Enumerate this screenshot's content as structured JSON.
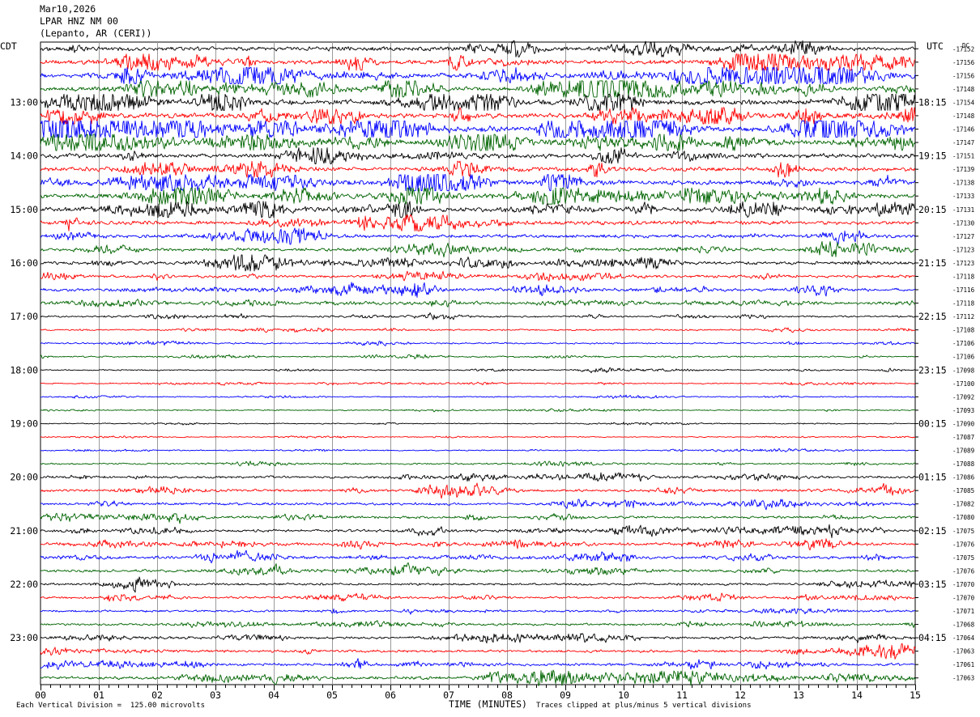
{
  "header": {
    "date": "Mar10,2026",
    "station": "LPAR HNZ NM 00",
    "location": "(Lepanto, AR (CERI))"
  },
  "footer": {
    "left_note": "Each Vertical Division =  125.00 microvolts",
    "xaxis_title": "TIME (MINUTES)",
    "right_note": "Traces clipped at plus/minus 5 vertical divisions"
  },
  "chart_data": {
    "type": "line",
    "title": "Mar10,2026 LPAR HNZ NM 00 (Lepanto, AR (CERI))",
    "xlabel": "TIME (MINUTES)",
    "left_axis_label": "CDT",
    "right_axis_label": "UTC",
    "dc_label": "DC",
    "xlim": [
      0,
      15
    ],
    "x_ticks": [
      "00",
      "01",
      "02",
      "03",
      "04",
      "05",
      "06",
      "07",
      "08",
      "09",
      "10",
      "11",
      "12",
      "13",
      "14",
      "15"
    ],
    "trace_colors": [
      "#000000",
      "#ff0000",
      "#0000ff",
      "#006400"
    ],
    "trace_minutes": 15,
    "left_time_labels": [
      "13:00",
      "14:00",
      "15:00",
      "16:00",
      "17:00",
      "18:00",
      "19:00",
      "20:00",
      "21:00",
      "22:00",
      "23:00"
    ],
    "right_time_labels": [
      "18:15",
      "19:15",
      "20:15",
      "21:15",
      "22:15",
      "23:15",
      "00:15",
      "01:15",
      "02:15",
      "03:15",
      "04:15"
    ],
    "dc_offsets": [
      "-17152",
      "-17156",
      "-17156",
      "-17148",
      "-17154",
      "-17148",
      "-17146",
      "-17147",
      "-17151",
      "-17139",
      "-17138",
      "-17133",
      "-17131",
      "-17130",
      "-17127",
      "-17123",
      "-17123",
      "-17118",
      "-17116",
      "-17118",
      "-17112",
      "-17108",
      "-17106",
      "-17106",
      "-17098",
      "-17100",
      "-17092",
      "-17093",
      "-17090",
      "-17087",
      "-17089",
      "-17088",
      "-17086",
      "-17085",
      "-17082",
      "-17080",
      "-17075",
      "-17076",
      "-17075",
      "-17076",
      "-17070",
      "-17070",
      "-17071",
      "-17068",
      "-17064",
      "-17063",
      "-17061",
      "-17063"
    ],
    "trace_activity": [
      1.4,
      1.5,
      1.6,
      1.5,
      1.8,
      1.8,
      1.9,
      1.7,
      1.6,
      1.5,
      1.6,
      1.6,
      1.5,
      1.4,
      1.2,
      1.1,
      1.1,
      1.0,
      1.0,
      0.8,
      0.6,
      0.55,
      0.55,
      0.5,
      0.45,
      0.45,
      0.4,
      0.4,
      0.35,
      0.35,
      0.4,
      0.55,
      0.85,
      0.9,
      0.9,
      0.9,
      0.95,
      0.95,
      1.0,
      1.0,
      0.8,
      0.75,
      0.75,
      0.8,
      0.9,
      0.9,
      0.95,
      1.1
    ],
    "grid": true,
    "vertical_division_microvolts": 125.0,
    "clip_divisions": 5
  }
}
